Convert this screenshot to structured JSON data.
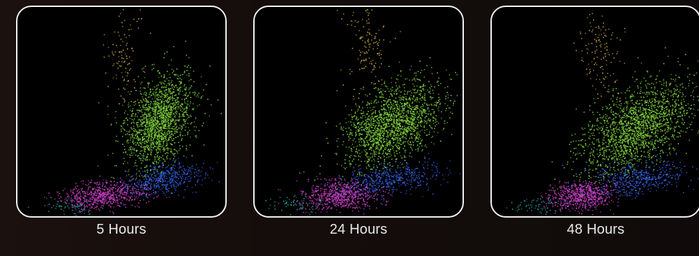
{
  "colors": {
    "yellow": "#c9a43a",
    "green": "#7ccf3a",
    "blue": "#2f5de0",
    "magenta": "#c63ec2",
    "cyan": "#1fa8a0"
  },
  "chart_data": [
    {
      "type": "scatter",
      "title": "5 Hours",
      "populations": [
        {
          "name": "",
          "color": "#c9a43a",
          "cx": 0.52,
          "cy": 0.25,
          "sx": 0.05,
          "sy": 0.12,
          "rot": -5,
          "n": 120
        },
        {
          "name": "",
          "color": "#7ccf3a",
          "cx": 0.68,
          "cy": 0.55,
          "sx": 0.07,
          "sy": 0.12,
          "rot": 25,
          "n": 1800
        },
        {
          "name": "",
          "color": "#2f5de0",
          "cx": 0.7,
          "cy": 0.82,
          "sx": 0.1,
          "sy": 0.035,
          "rot": -10,
          "n": 500
        },
        {
          "name": "",
          "color": "#c63ec2",
          "cx": 0.41,
          "cy": 0.9,
          "sx": 0.1,
          "sy": 0.032,
          "rot": -5,
          "n": 700
        },
        {
          "name": "",
          "color": "#1fa8a0",
          "cx": 0.25,
          "cy": 0.95,
          "sx": 0.06,
          "sy": 0.02,
          "rot": 0,
          "n": 60
        }
      ]
    },
    {
      "type": "scatter",
      "title": "24 Hours",
      "populations": [
        {
          "name": "",
          "color": "#c9a43a",
          "cx": 0.54,
          "cy": 0.18,
          "sx": 0.05,
          "sy": 0.1,
          "rot": -5,
          "n": 140
        },
        {
          "name": "",
          "color": "#7ccf3a",
          "cx": 0.66,
          "cy": 0.56,
          "sx": 0.13,
          "sy": 0.08,
          "rot": -35,
          "n": 1900
        },
        {
          "name": "",
          "color": "#2f5de0",
          "cx": 0.65,
          "cy": 0.82,
          "sx": 0.13,
          "sy": 0.035,
          "rot": -10,
          "n": 500
        },
        {
          "name": "",
          "color": "#c63ec2",
          "cx": 0.41,
          "cy": 0.9,
          "sx": 0.09,
          "sy": 0.035,
          "rot": -5,
          "n": 700
        },
        {
          "name": "",
          "color": "#1fa8a0",
          "cx": 0.2,
          "cy": 0.94,
          "sx": 0.07,
          "sy": 0.02,
          "rot": 0,
          "n": 60
        }
      ]
    },
    {
      "type": "scatter",
      "title": "48 Hours",
      "populations": [
        {
          "name": "",
          "color": "#c9a43a",
          "cx": 0.52,
          "cy": 0.22,
          "sx": 0.05,
          "sy": 0.11,
          "rot": -5,
          "n": 140
        },
        {
          "name": "",
          "color": "#7ccf3a",
          "cx": 0.7,
          "cy": 0.57,
          "sx": 0.15,
          "sy": 0.08,
          "rot": -35,
          "n": 2000
        },
        {
          "name": "",
          "color": "#2f5de0",
          "cx": 0.7,
          "cy": 0.82,
          "sx": 0.12,
          "sy": 0.04,
          "rot": -10,
          "n": 500
        },
        {
          "name": "",
          "color": "#c63ec2",
          "cx": 0.43,
          "cy": 0.9,
          "sx": 0.08,
          "sy": 0.035,
          "rot": -5,
          "n": 700
        },
        {
          "name": "",
          "color": "#1fa8a0",
          "cx": 0.22,
          "cy": 0.95,
          "sx": 0.06,
          "sy": 0.02,
          "rot": 0,
          "n": 60
        }
      ]
    }
  ]
}
